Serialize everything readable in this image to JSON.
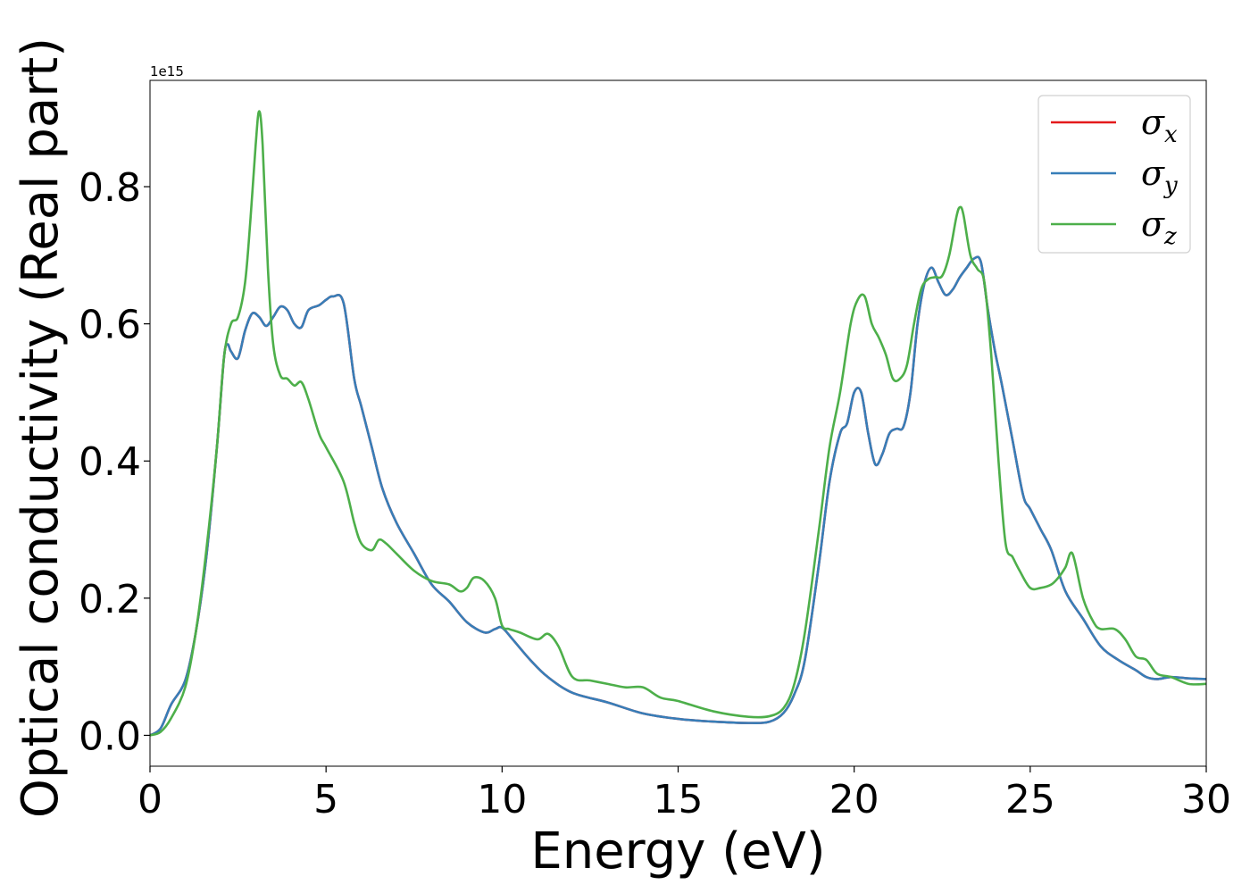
{
  "chart_data": {
    "type": "line",
    "title": "",
    "xlabel": "Energy (eV)",
    "ylabel": "Optical conductivity (Real part)",
    "y_offset_label": "1e15",
    "xlim": [
      0,
      30
    ],
    "ylim": [
      -0.045,
      0.955
    ],
    "x_ticks": [
      0,
      5,
      10,
      15,
      20,
      25,
      30
    ],
    "x_tick_labels": [
      "0",
      "5",
      "10",
      "15",
      "20",
      "25",
      "30"
    ],
    "y_ticks": [
      0.0,
      0.2,
      0.4,
      0.6,
      0.8
    ],
    "y_tick_labels": [
      "0.0",
      "0.2",
      "0.4",
      "0.6",
      "0.8"
    ],
    "grid": false,
    "legend_position": "top-right",
    "series": [
      {
        "name": "σx",
        "symbol": "σ",
        "subscript": "x",
        "color": "#e41a1c",
        "x": [
          0,
          0.3,
          0.6,
          1.0,
          1.3,
          1.6,
          1.9,
          2.1,
          2.2,
          2.3,
          2.5,
          2.7,
          2.9,
          3.1,
          3.3,
          3.5,
          3.7,
          3.9,
          4.1,
          4.3,
          4.5,
          4.8,
          5.0,
          5.2,
          5.5,
          5.8,
          6.0,
          6.3,
          6.6,
          7.0,
          7.5,
          8.0,
          8.5,
          9.0,
          9.5,
          9.8,
          10.0,
          10.3,
          10.8,
          11.3,
          12.0,
          13.0,
          14.0,
          15.0,
          16.0,
          17.0,
          17.6,
          18.0,
          18.3,
          18.6,
          19.0,
          19.3,
          19.6,
          19.8,
          20.0,
          20.2,
          20.4,
          20.6,
          20.8,
          21.0,
          21.2,
          21.4,
          21.6,
          21.8,
          22.0,
          22.2,
          22.4,
          22.6,
          22.8,
          23.0,
          23.2,
          23.4,
          23.6,
          23.8,
          24.0,
          24.2,
          24.5,
          24.8,
          25.0,
          25.3,
          25.6,
          26.0,
          26.5,
          27.0,
          27.5,
          28.0,
          28.3,
          28.6,
          29.0,
          29.5,
          30.0
        ],
        "y": [
          0.0,
          0.01,
          0.045,
          0.08,
          0.15,
          0.26,
          0.42,
          0.55,
          0.57,
          0.56,
          0.55,
          0.59,
          0.615,
          0.61,
          0.597,
          0.61,
          0.625,
          0.62,
          0.6,
          0.595,
          0.62,
          0.627,
          0.635,
          0.64,
          0.63,
          0.52,
          0.48,
          0.42,
          0.36,
          0.31,
          0.265,
          0.22,
          0.195,
          0.165,
          0.15,
          0.155,
          0.157,
          0.14,
          0.11,
          0.085,
          0.062,
          0.048,
          0.032,
          0.024,
          0.02,
          0.018,
          0.02,
          0.033,
          0.06,
          0.11,
          0.25,
          0.37,
          0.44,
          0.455,
          0.5,
          0.5,
          0.44,
          0.395,
          0.41,
          0.44,
          0.447,
          0.45,
          0.5,
          0.6,
          0.66,
          0.682,
          0.66,
          0.642,
          0.65,
          0.668,
          0.682,
          0.695,
          0.69,
          0.62,
          0.56,
          0.51,
          0.43,
          0.35,
          0.33,
          0.3,
          0.27,
          0.21,
          0.17,
          0.13,
          0.11,
          0.095,
          0.085,
          0.082,
          0.085,
          0.083,
          0.082
        ]
      },
      {
        "name": "σy",
        "symbol": "σ",
        "subscript": "y",
        "color": "#377eb8",
        "x": [
          0,
          0.3,
          0.6,
          1.0,
          1.3,
          1.6,
          1.9,
          2.1,
          2.2,
          2.3,
          2.5,
          2.7,
          2.9,
          3.1,
          3.3,
          3.5,
          3.7,
          3.9,
          4.1,
          4.3,
          4.5,
          4.8,
          5.0,
          5.2,
          5.5,
          5.8,
          6.0,
          6.3,
          6.6,
          7.0,
          7.5,
          8.0,
          8.5,
          9.0,
          9.5,
          9.8,
          10.0,
          10.3,
          10.8,
          11.3,
          12.0,
          13.0,
          14.0,
          15.0,
          16.0,
          17.0,
          17.6,
          18.0,
          18.3,
          18.6,
          19.0,
          19.3,
          19.6,
          19.8,
          20.0,
          20.2,
          20.4,
          20.6,
          20.8,
          21.0,
          21.2,
          21.4,
          21.6,
          21.8,
          22.0,
          22.2,
          22.4,
          22.6,
          22.8,
          23.0,
          23.2,
          23.4,
          23.6,
          23.8,
          24.0,
          24.2,
          24.5,
          24.8,
          25.0,
          25.3,
          25.6,
          26.0,
          26.5,
          27.0,
          27.5,
          28.0,
          28.3,
          28.6,
          29.0,
          29.5,
          30.0
        ],
        "y": [
          0.0,
          0.01,
          0.045,
          0.08,
          0.15,
          0.26,
          0.42,
          0.55,
          0.57,
          0.56,
          0.55,
          0.59,
          0.615,
          0.61,
          0.597,
          0.61,
          0.625,
          0.62,
          0.6,
          0.595,
          0.62,
          0.627,
          0.635,
          0.64,
          0.63,
          0.52,
          0.48,
          0.42,
          0.36,
          0.31,
          0.265,
          0.22,
          0.195,
          0.165,
          0.15,
          0.155,
          0.157,
          0.14,
          0.11,
          0.085,
          0.062,
          0.048,
          0.032,
          0.024,
          0.02,
          0.018,
          0.02,
          0.033,
          0.06,
          0.11,
          0.25,
          0.37,
          0.44,
          0.455,
          0.5,
          0.5,
          0.44,
          0.395,
          0.41,
          0.44,
          0.447,
          0.45,
          0.5,
          0.6,
          0.66,
          0.682,
          0.66,
          0.642,
          0.65,
          0.668,
          0.682,
          0.695,
          0.69,
          0.62,
          0.56,
          0.51,
          0.43,
          0.35,
          0.33,
          0.3,
          0.27,
          0.21,
          0.17,
          0.13,
          0.11,
          0.095,
          0.085,
          0.082,
          0.085,
          0.083,
          0.082
        ]
      },
      {
        "name": "σz",
        "symbol": "σ",
        "subscript": "z",
        "color": "#4daf4a",
        "x": [
          0,
          0.3,
          0.6,
          1.0,
          1.3,
          1.6,
          1.9,
          2.1,
          2.3,
          2.5,
          2.7,
          2.85,
          3.0,
          3.1,
          3.2,
          3.35,
          3.5,
          3.7,
          3.9,
          4.1,
          4.3,
          4.5,
          4.8,
          5.0,
          5.5,
          5.8,
          6.0,
          6.3,
          6.5,
          6.7,
          7.0,
          7.5,
          8.0,
          8.5,
          8.8,
          9.0,
          9.2,
          9.5,
          9.8,
          10.0,
          10.2,
          10.5,
          11.0,
          11.3,
          11.6,
          12.0,
          12.5,
          13.0,
          13.5,
          14.0,
          14.5,
          15.0,
          16.0,
          17.0,
          17.6,
          18.0,
          18.3,
          18.6,
          19.0,
          19.3,
          19.6,
          19.9,
          20.1,
          20.3,
          20.5,
          20.7,
          20.9,
          21.1,
          21.3,
          21.5,
          21.7,
          21.9,
          22.1,
          22.3,
          22.5,
          22.7,
          22.9,
          23.0,
          23.1,
          23.3,
          23.5,
          23.7,
          23.9,
          24.1,
          24.3,
          24.5,
          24.7,
          25.0,
          25.3,
          25.6,
          25.8,
          26.0,
          26.2,
          26.5,
          26.8,
          27.0,
          27.4,
          27.7,
          28.0,
          28.3,
          28.6,
          29.0,
          29.5,
          30.0
        ],
        "y": [
          0.0,
          0.005,
          0.025,
          0.07,
          0.15,
          0.27,
          0.42,
          0.55,
          0.6,
          0.61,
          0.66,
          0.75,
          0.86,
          0.91,
          0.86,
          0.68,
          0.57,
          0.525,
          0.52,
          0.51,
          0.515,
          0.49,
          0.44,
          0.42,
          0.37,
          0.31,
          0.28,
          0.27,
          0.285,
          0.28,
          0.265,
          0.24,
          0.225,
          0.22,
          0.21,
          0.215,
          0.23,
          0.225,
          0.2,
          0.16,
          0.155,
          0.15,
          0.14,
          0.148,
          0.13,
          0.085,
          0.08,
          0.075,
          0.07,
          0.07,
          0.055,
          0.05,
          0.035,
          0.027,
          0.028,
          0.04,
          0.075,
          0.15,
          0.3,
          0.42,
          0.5,
          0.6,
          0.635,
          0.64,
          0.6,
          0.58,
          0.555,
          0.52,
          0.52,
          0.54,
          0.6,
          0.65,
          0.665,
          0.668,
          0.67,
          0.7,
          0.755,
          0.77,
          0.76,
          0.7,
          0.68,
          0.66,
          0.55,
          0.4,
          0.28,
          0.26,
          0.24,
          0.215,
          0.215,
          0.22,
          0.23,
          0.245,
          0.265,
          0.2,
          0.165,
          0.155,
          0.155,
          0.14,
          0.115,
          0.11,
          0.09,
          0.085,
          0.075,
          0.075
        ]
      }
    ]
  }
}
